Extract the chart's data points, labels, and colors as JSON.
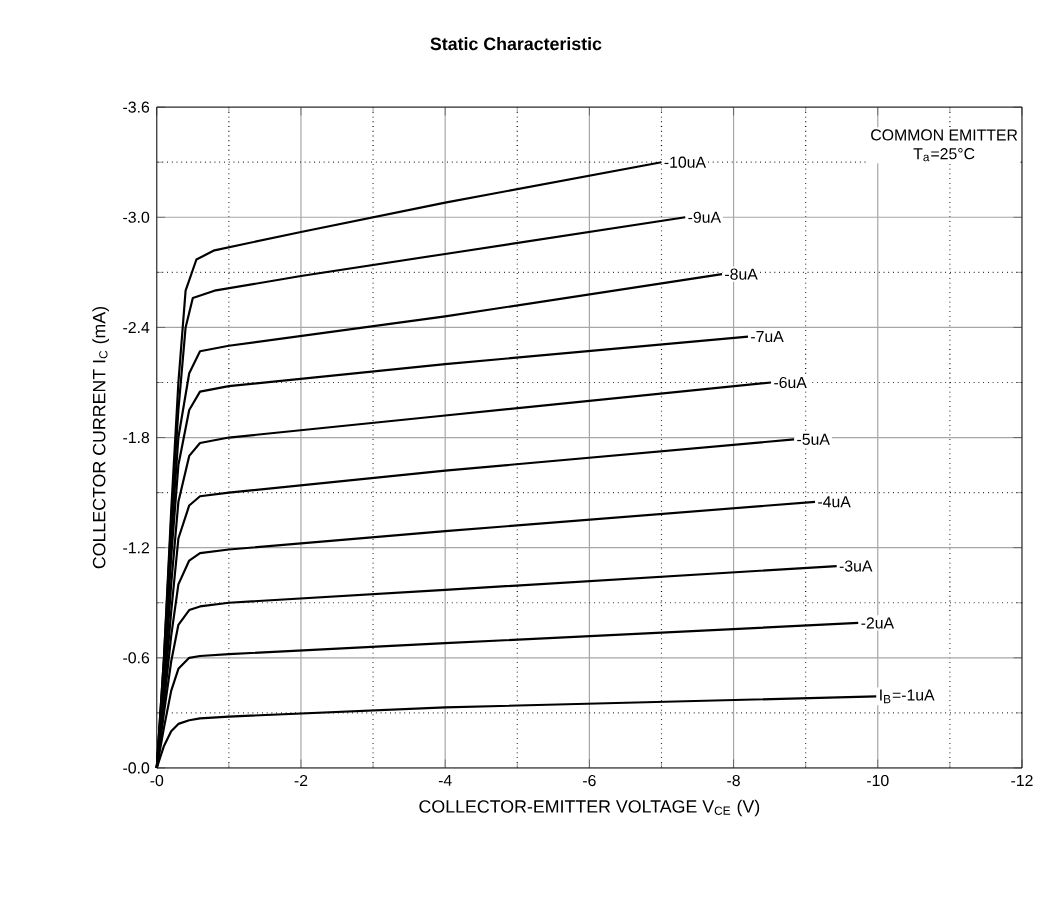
{
  "chart_data": {
    "type": "line",
    "title": "Static Characteristic",
    "xlabel": "COLLECTOR-EMITTER VOLTAGE V$_{CE}$ (V)",
    "ylabel": "COLLECTOR CURRENT I$_{C}$ (mA)",
    "xlim": [
      0,
      -12
    ],
    "ylim": [
      0,
      -3.6
    ],
    "xticks": [
      {
        "value": 0,
        "label": "-0"
      },
      -2,
      -4,
      -6,
      -8,
      -10,
      -12
    ],
    "yticks": [
      {
        "value": 0,
        "label": "-0.0"
      },
      {
        "value": -0.6,
        "label": "-0.6"
      },
      {
        "value": -1.2,
        "label": "-1.2"
      },
      {
        "value": -1.8,
        "label": "-1.8"
      },
      {
        "value": -2.4,
        "label": "-2.4"
      },
      {
        "value": -3.0,
        "label": "-3.0"
      },
      {
        "value": -3.6,
        "label": "-3.6"
      }
    ],
    "grid": true,
    "annotations": [
      "COMMON EMITTER",
      "T$_{a}$=25°C"
    ],
    "series": [
      {
        "name": "-10uA",
        "color": "#000000",
        "x": [
          0,
          -0.1,
          -0.2,
          -0.3,
          -0.4,
          -0.55,
          -0.8,
          -2,
          -4,
          -7
        ],
        "values": [
          0,
          -0.6,
          -1.4,
          -2.1,
          -2.6,
          -2.77,
          -2.82,
          -2.92,
          -3.08,
          -3.3
        ]
      },
      {
        "name": "-9uA",
        "color": "#000000",
        "x": [
          0,
          -0.1,
          -0.2,
          -0.3,
          -0.4,
          -0.5,
          -0.8,
          -2,
          -4,
          -7.33
        ],
        "values": [
          0,
          -0.6,
          -1.35,
          -1.95,
          -2.4,
          -2.56,
          -2.6,
          -2.68,
          -2.8,
          -3.0
        ]
      },
      {
        "name": "-8uA",
        "color": "#000000",
        "x": [
          0,
          -0.1,
          -0.2,
          -0.3,
          -0.45,
          -0.6,
          -1,
          -4,
          -7.84
        ],
        "values": [
          0,
          -0.55,
          -1.25,
          -1.8,
          -2.15,
          -2.27,
          -2.3,
          -2.46,
          -2.69
        ]
      },
      {
        "name": "-7uA",
        "color": "#000000",
        "x": [
          0,
          -0.1,
          -0.2,
          -0.3,
          -0.45,
          -0.6,
          -1,
          -4,
          -8.2
        ],
        "values": [
          0,
          -0.5,
          -1.15,
          -1.65,
          -1.95,
          -2.05,
          -2.08,
          -2.2,
          -2.35
        ]
      },
      {
        "name": "-6uA",
        "color": "#000000",
        "x": [
          0,
          -0.1,
          -0.2,
          -0.3,
          -0.45,
          -0.6,
          -1,
          -4,
          -8.52
        ],
        "values": [
          0,
          -0.45,
          -1.0,
          -1.45,
          -1.7,
          -1.77,
          -1.8,
          -1.92,
          -2.1
        ]
      },
      {
        "name": "-5uA",
        "color": "#000000",
        "x": [
          0,
          -0.1,
          -0.2,
          -0.3,
          -0.45,
          -0.6,
          -1,
          -4,
          -8.84
        ],
        "values": [
          0,
          -0.4,
          -0.85,
          -1.25,
          -1.43,
          -1.48,
          -1.5,
          -1.62,
          -1.79
        ]
      },
      {
        "name": "-4uA",
        "color": "#000000",
        "x": [
          0,
          -0.1,
          -0.2,
          -0.3,
          -0.45,
          -0.6,
          -1,
          -4,
          -9.13
        ],
        "values": [
          0,
          -0.35,
          -0.72,
          -1.0,
          -1.13,
          -1.17,
          -1.19,
          -1.29,
          -1.45
        ]
      },
      {
        "name": "-3uA",
        "color": "#000000",
        "x": [
          0,
          -0.1,
          -0.2,
          -0.3,
          -0.45,
          -0.6,
          -1,
          -4,
          -9.43
        ],
        "values": [
          0,
          -0.3,
          -0.58,
          -0.78,
          -0.86,
          -0.88,
          -0.9,
          -0.97,
          -1.1
        ]
      },
      {
        "name": "-2uA",
        "color": "#000000",
        "x": [
          0,
          -0.1,
          -0.2,
          -0.3,
          -0.45,
          -0.6,
          -1,
          -4,
          -9.73
        ],
        "values": [
          0,
          -0.22,
          -0.42,
          -0.54,
          -0.6,
          -0.61,
          -0.62,
          -0.68,
          -0.79
        ]
      },
      {
        "name": "I$_{B}$=-1uA",
        "color": "#000000",
        "x": [
          0,
          -0.1,
          -0.2,
          -0.3,
          -0.45,
          -0.6,
          -1,
          -4,
          -9.98
        ],
        "values": [
          0,
          -0.12,
          -0.2,
          -0.24,
          -0.26,
          -0.27,
          -0.28,
          -0.33,
          -0.39
        ]
      }
    ]
  }
}
